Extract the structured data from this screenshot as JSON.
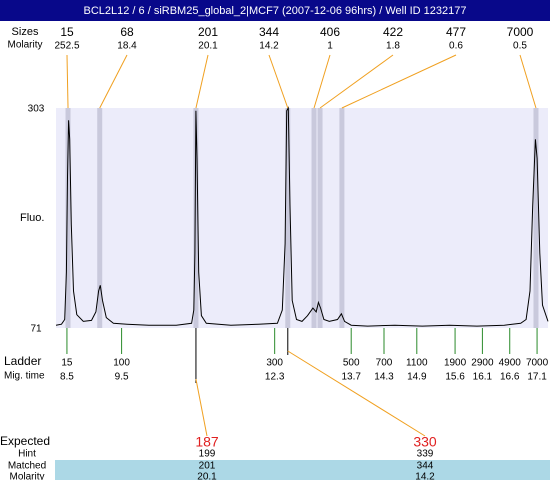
{
  "title": "BCL2L12 / 6 / siRBM25_global_2|MCF7 (2007-12-06 96hrs) / Well ID 1232177",
  "chart_data": {
    "type": "line",
    "y_label": "Fluo.",
    "ylim": [
      71,
      303
    ],
    "yticks": [
      71,
      303
    ],
    "xlim": [
      8.3,
      17.3
    ],
    "color": "#000000",
    "x": [
      8.3,
      8.4,
      8.46,
      8.49,
      8.51,
      8.53,
      8.55,
      8.58,
      8.62,
      8.68,
      8.8,
      8.95,
      9.03,
      9.08,
      9.11,
      9.15,
      9.22,
      9.35,
      9.6,
      10.0,
      10.5,
      10.78,
      10.82,
      10.84,
      10.86,
      10.88,
      10.91,
      10.96,
      11.05,
      11.5,
      12.0,
      12.35,
      12.44,
      12.49,
      12.52,
      12.55,
      12.58,
      12.62,
      12.7,
      12.8,
      12.9,
      13.0,
      13.06,
      13.1,
      13.14,
      13.2,
      13.3,
      13.45,
      13.52,
      13.58,
      13.7,
      14.0,
      14.5,
      15.0,
      15.5,
      16.0,
      16.5,
      16.8,
      16.9,
      16.97,
      17.02,
      17.07,
      17.1,
      17.15,
      17.2,
      17.3
    ],
    "values": [
      74,
      75,
      80,
      130,
      230,
      290,
      270,
      180,
      110,
      85,
      78,
      79,
      88,
      110,
      116,
      100,
      82,
      76,
      75,
      74,
      74,
      76,
      90,
      150,
      300,
      250,
      130,
      84,
      76,
      74,
      75,
      76,
      90,
      160,
      300,
      303,
      200,
      100,
      80,
      78,
      84,
      92,
      88,
      98,
      92,
      80,
      78,
      80,
      86,
      78,
      74,
      73,
      74,
      73,
      74,
      73,
      74,
      76,
      80,
      110,
      200,
      270,
      250,
      150,
      95,
      78
    ],
    "peaks": {
      "sizes_label": "Sizes",
      "molarity_label": "Molarity",
      "sizes": [
        15,
        68,
        201,
        344,
        406,
        422,
        477,
        7000
      ],
      "molarity": [
        252.5,
        18.4,
        20.1,
        14.2,
        1,
        1.8,
        0.6,
        0.5
      ],
      "times": [
        8.52,
        9.1,
        10.86,
        12.54,
        13.02,
        13.13,
        13.53,
        17.08
      ]
    },
    "ladder": {
      "label": "Ladder",
      "time_label": "Mig. time",
      "sizes": [
        15,
        100,
        300,
        500,
        700,
        1100,
        1900,
        2900,
        4900,
        7000
      ],
      "times": [
        8.5,
        9.5,
        12.3,
        13.7,
        14.3,
        14.9,
        15.6,
        16.1,
        16.6,
        17.1
      ]
    },
    "expected": {
      "label": "Expected",
      "values": [
        187,
        330
      ],
      "hint_label": "Hint",
      "hint": [
        199,
        339
      ],
      "matched_label": "Matched",
      "matched": [
        201,
        344
      ],
      "molarity_label": "Molarity",
      "molarity": [
        20.1,
        14.2
      ]
    }
  }
}
